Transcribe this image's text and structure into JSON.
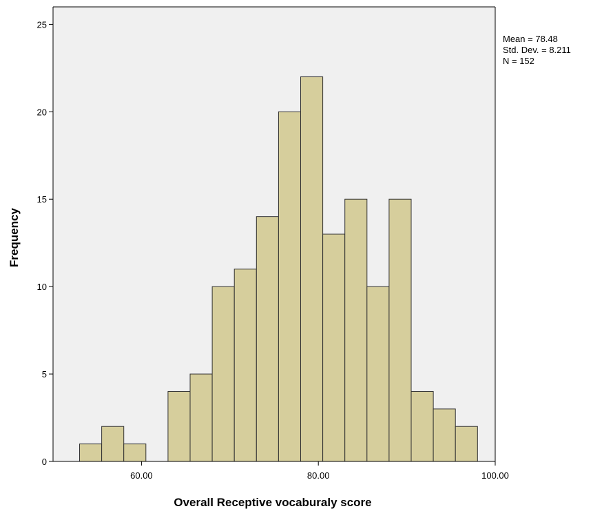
{
  "chart_data": {
    "type": "bar",
    "subtype": "histogram",
    "xlabel": "Overall Receptive vocaburaly score",
    "ylabel": "Frequency",
    "xlim": [
      50,
      100
    ],
    "ylim": [
      0,
      26
    ],
    "x_ticks": [
      60,
      80,
      100
    ],
    "x_tick_labels": [
      "60.00",
      "80.00",
      "100.00"
    ],
    "y_ticks": [
      0,
      5,
      10,
      15,
      20,
      25
    ],
    "y_tick_labels": [
      "0",
      "5",
      "10",
      "15",
      "20",
      "25"
    ],
    "bin_width": 2.5,
    "bins": [
      {
        "start": 53.0,
        "end": 55.5,
        "count": 1
      },
      {
        "start": 55.5,
        "end": 58.0,
        "count": 2
      },
      {
        "start": 58.0,
        "end": 60.5,
        "count": 1
      },
      {
        "start": 60.5,
        "end": 63.0,
        "count": 0
      },
      {
        "start": 63.0,
        "end": 65.5,
        "count": 4
      },
      {
        "start": 65.5,
        "end": 68.0,
        "count": 5
      },
      {
        "start": 68.0,
        "end": 70.5,
        "count": 10
      },
      {
        "start": 70.5,
        "end": 73.0,
        "count": 11
      },
      {
        "start": 73.0,
        "end": 75.5,
        "count": 14
      },
      {
        "start": 75.5,
        "end": 78.0,
        "count": 20
      },
      {
        "start": 78.0,
        "end": 80.5,
        "count": 22
      },
      {
        "start": 80.5,
        "end": 83.0,
        "count": 13
      },
      {
        "start": 83.0,
        "end": 85.5,
        "count": 15
      },
      {
        "start": 85.5,
        "end": 88.0,
        "count": 10
      },
      {
        "start": 88.0,
        "end": 90.5,
        "count": 15
      },
      {
        "start": 90.5,
        "end": 93.0,
        "count": 4
      },
      {
        "start": 93.0,
        "end": 95.5,
        "count": 3
      },
      {
        "start": 95.5,
        "end": 98.0,
        "count": 2
      }
    ],
    "grid": false,
    "statistics": [
      "Mean = 78.48",
      "Std. Dev. = 8.211",
      "N = 152"
    ],
    "colors": {
      "bar_fill": "#d6ce9c",
      "bar_stroke": "#333333",
      "plot_background": "#f0f0f0",
      "axis": "#000000"
    }
  }
}
